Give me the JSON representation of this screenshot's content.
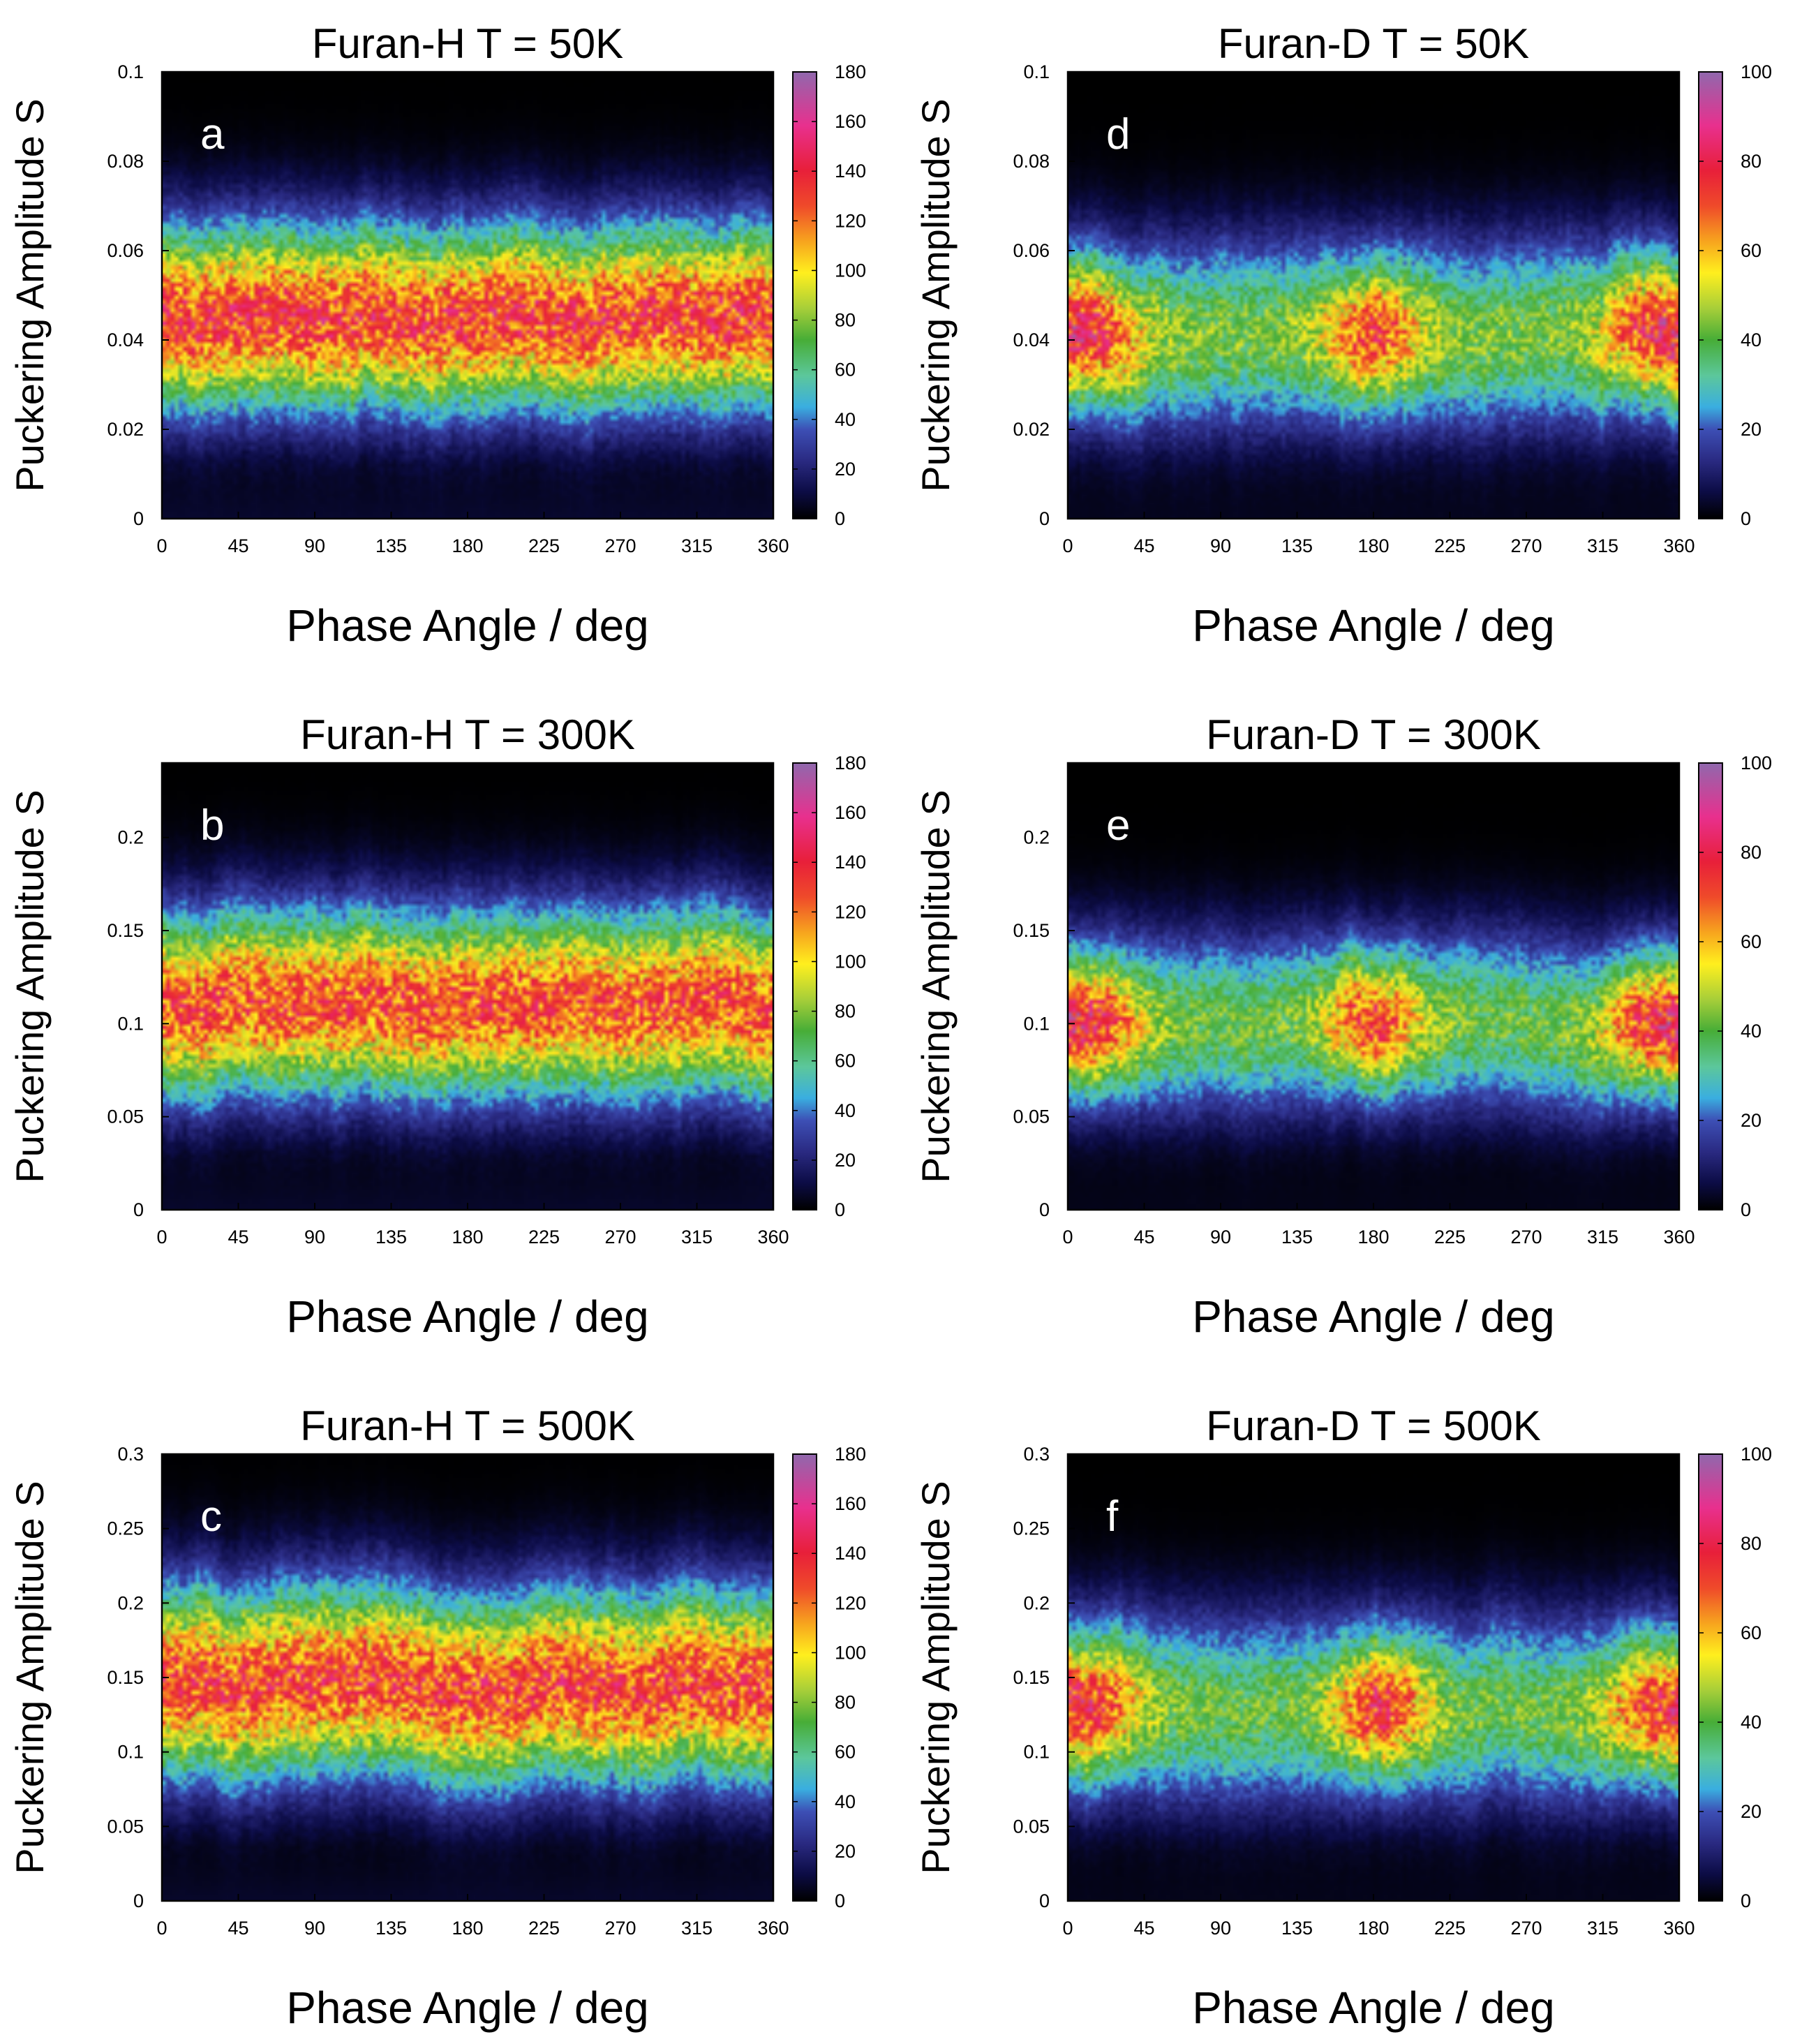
{
  "figure": {
    "colormap": [
      {
        "t": 0.0,
        "c": "#000000"
      },
      {
        "t": 0.06,
        "c": "#0c0c45"
      },
      {
        "t": 0.13,
        "c": "#2a2a82"
      },
      {
        "t": 0.2,
        "c": "#3d4fb5"
      },
      {
        "t": 0.25,
        "c": "#3aaee0"
      },
      {
        "t": 0.32,
        "c": "#5cc79b"
      },
      {
        "t": 0.4,
        "c": "#47ad37"
      },
      {
        "t": 0.47,
        "c": "#a6ce39"
      },
      {
        "t": 0.55,
        "c": "#ffef1e"
      },
      {
        "t": 0.62,
        "c": "#f7a51e"
      },
      {
        "t": 0.7,
        "c": "#ef4a2a"
      },
      {
        "t": 0.78,
        "c": "#e81f3a"
      },
      {
        "t": 0.88,
        "c": "#e8308e"
      },
      {
        "t": 1.0,
        "c": "#9068ad"
      }
    ]
  },
  "chart_data": [
    {
      "panel": "a",
      "type": "heatmap",
      "title": "Furan-H  T = 50K",
      "xlabel": "Phase Angle / deg",
      "ylabel": "Puckering Amplitude S",
      "xlim": [
        0,
        360
      ],
      "ylim": [
        0,
        0.1
      ],
      "xticks": [
        "0",
        "45",
        "90",
        "135",
        "180",
        "225",
        "270",
        "315",
        "360"
      ],
      "yticks": [
        "0",
        "0.02",
        "0.04",
        "0.06",
        "0.08",
        "0.1"
      ],
      "colorbar": {
        "range": [
          0,
          180
        ],
        "ticks": [
          "0",
          "20",
          "40",
          "60",
          "80",
          "100",
          "120",
          "140",
          "160",
          "180"
        ]
      },
      "band": {
        "center": 0.045,
        "width": 0.02,
        "peak": 130,
        "modulation": [
          {
            "phase": 0,
            "height": 0
          }
        ]
      }
    },
    {
      "panel": "b",
      "type": "heatmap",
      "title": "Furan-H  T = 300K",
      "xlabel": "Phase Angle / deg",
      "ylabel": "Puckering Amplitude S",
      "xlim": [
        0,
        360
      ],
      "ylim": [
        0,
        0.24
      ],
      "xticks": [
        "0",
        "45",
        "90",
        "135",
        "180",
        "225",
        "270",
        "315",
        "360"
      ],
      "yticks": [
        "0",
        "0.05",
        "0.1",
        "0.15",
        "0.2"
      ],
      "colorbar": {
        "range": [
          0,
          180
        ],
        "ticks": [
          "0",
          "20",
          "40",
          "60",
          "80",
          "100",
          "120",
          "140",
          "160",
          "180"
        ]
      },
      "band": {
        "center": 0.11,
        "width": 0.048,
        "peak": 125,
        "modulation": [
          {
            "phase": 0,
            "height": 0
          }
        ]
      }
    },
    {
      "panel": "c",
      "type": "heatmap",
      "title": "Furan-H  T = 500K",
      "xlabel": "Phase Angle / deg",
      "ylabel": "Puckering Amplitude S",
      "xlim": [
        0,
        360
      ],
      "ylim": [
        0,
        0.3
      ],
      "xticks": [
        "0",
        "45",
        "90",
        "135",
        "180",
        "225",
        "270",
        "315",
        "360"
      ],
      "yticks": [
        "0",
        "0.05",
        "0.1",
        "0.15",
        "0.2",
        "0.25",
        "0.3"
      ],
      "colorbar": {
        "range": [
          0,
          180
        ],
        "ticks": [
          "0",
          "20",
          "40",
          "60",
          "80",
          "100",
          "120",
          "140",
          "160",
          "180"
        ]
      },
      "band": {
        "center": 0.145,
        "width": 0.062,
        "peak": 128,
        "modulation": [
          {
            "phase": 0,
            "height": 0
          }
        ]
      }
    },
    {
      "panel": "d",
      "type": "heatmap",
      "title": "Furan-D  T = 50K",
      "xlabel": "Phase Angle / deg",
      "ylabel": "Puckering Amplitude S",
      "xlim": [
        0,
        360
      ],
      "ylim": [
        0,
        0.1
      ],
      "xticks": [
        "0",
        "45",
        "90",
        "135",
        "180",
        "225",
        "270",
        "315",
        "360"
      ],
      "yticks": [
        "0",
        "0.02",
        "0.04",
        "0.06",
        "0.08",
        "0.1"
      ],
      "colorbar": {
        "range": [
          0,
          100
        ],
        "ticks": [
          "0",
          "20",
          "40",
          "60",
          "80",
          "100"
        ]
      },
      "band": {
        "center": 0.041,
        "width": 0.02,
        "peak": 42,
        "modulation": [
          {
            "phase": 18,
            "height": 28
          },
          {
            "phase": 180,
            "height": 30
          },
          {
            "phase": 342,
            "height": 28
          }
        ]
      }
    },
    {
      "panel": "e",
      "type": "heatmap",
      "title": "Furan-D  T = 300K",
      "xlabel": "Phase Angle / deg",
      "ylabel": "Puckering Amplitude S",
      "xlim": [
        0,
        360
      ],
      "ylim": [
        0,
        0.24
      ],
      "xticks": [
        "0",
        "45",
        "90",
        "135",
        "180",
        "225",
        "270",
        "315",
        "360"
      ],
      "yticks": [
        "0",
        "0.05",
        "0.1",
        "0.15",
        "0.2"
      ],
      "colorbar": {
        "range": [
          0,
          100
        ],
        "ticks": [
          "0",
          "20",
          "40",
          "60",
          "80",
          "100"
        ]
      },
      "band": {
        "center": 0.1,
        "width": 0.045,
        "peak": 40,
        "modulation": [
          {
            "phase": 18,
            "height": 30
          },
          {
            "phase": 180,
            "height": 32
          },
          {
            "phase": 342,
            "height": 30
          }
        ]
      }
    },
    {
      "panel": "f",
      "type": "heatmap",
      "title": "Furan-D  T = 500K",
      "xlabel": "Phase Angle / deg",
      "ylabel": "Puckering Amplitude S",
      "xlim": [
        0,
        360
      ],
      "ylim": [
        0,
        0.3
      ],
      "xticks": [
        "0",
        "45",
        "90",
        "135",
        "180",
        "225",
        "270",
        "315",
        "360"
      ],
      "yticks": [
        "0",
        "0.05",
        "0.1",
        "0.15",
        "0.2",
        "0.25",
        "0.3"
      ],
      "colorbar": {
        "range": [
          0,
          100
        ],
        "ticks": [
          "0",
          "20",
          "40",
          "60",
          "80",
          "100"
        ]
      },
      "band": {
        "center": 0.13,
        "width": 0.06,
        "peak": 40,
        "modulation": [
          {
            "phase": 18,
            "height": 28
          },
          {
            "phase": 185,
            "height": 34
          },
          {
            "phase": 342,
            "height": 26
          }
        ]
      }
    }
  ]
}
